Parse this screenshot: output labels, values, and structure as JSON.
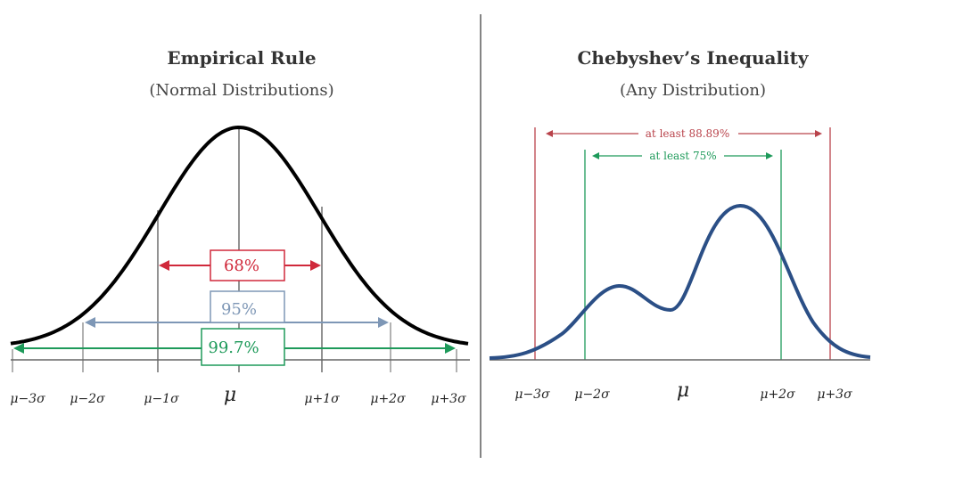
{
  "empirical": {
    "title": "Empirical Rule",
    "subtitle": "(Normal Distributions)",
    "ticks": [
      "μ−3σ",
      "μ−2σ",
      "μ−1σ",
      "μ",
      "μ+1σ",
      "μ+2σ",
      "μ+3σ"
    ],
    "bands": [
      {
        "label": "68%",
        "color": "#d0293b"
      },
      {
        "label": "95%",
        "color": "#7e97b6"
      },
      {
        "label": "99.7%",
        "color": "#1e9a5a"
      }
    ]
  },
  "chebyshev": {
    "title": "Chebyshev’s Inequality",
    "subtitle": "(Any Distribution)",
    "ticks": [
      "μ−3σ",
      "μ−2σ",
      "μ",
      "μ+2σ",
      "μ+3σ"
    ],
    "bands": [
      {
        "label": "at least 88.89%",
        "color": "#b9434b"
      },
      {
        "label": "at least 75%",
        "color": "#1e9a5a"
      }
    ],
    "curve_color": "#2b4f86"
  }
}
